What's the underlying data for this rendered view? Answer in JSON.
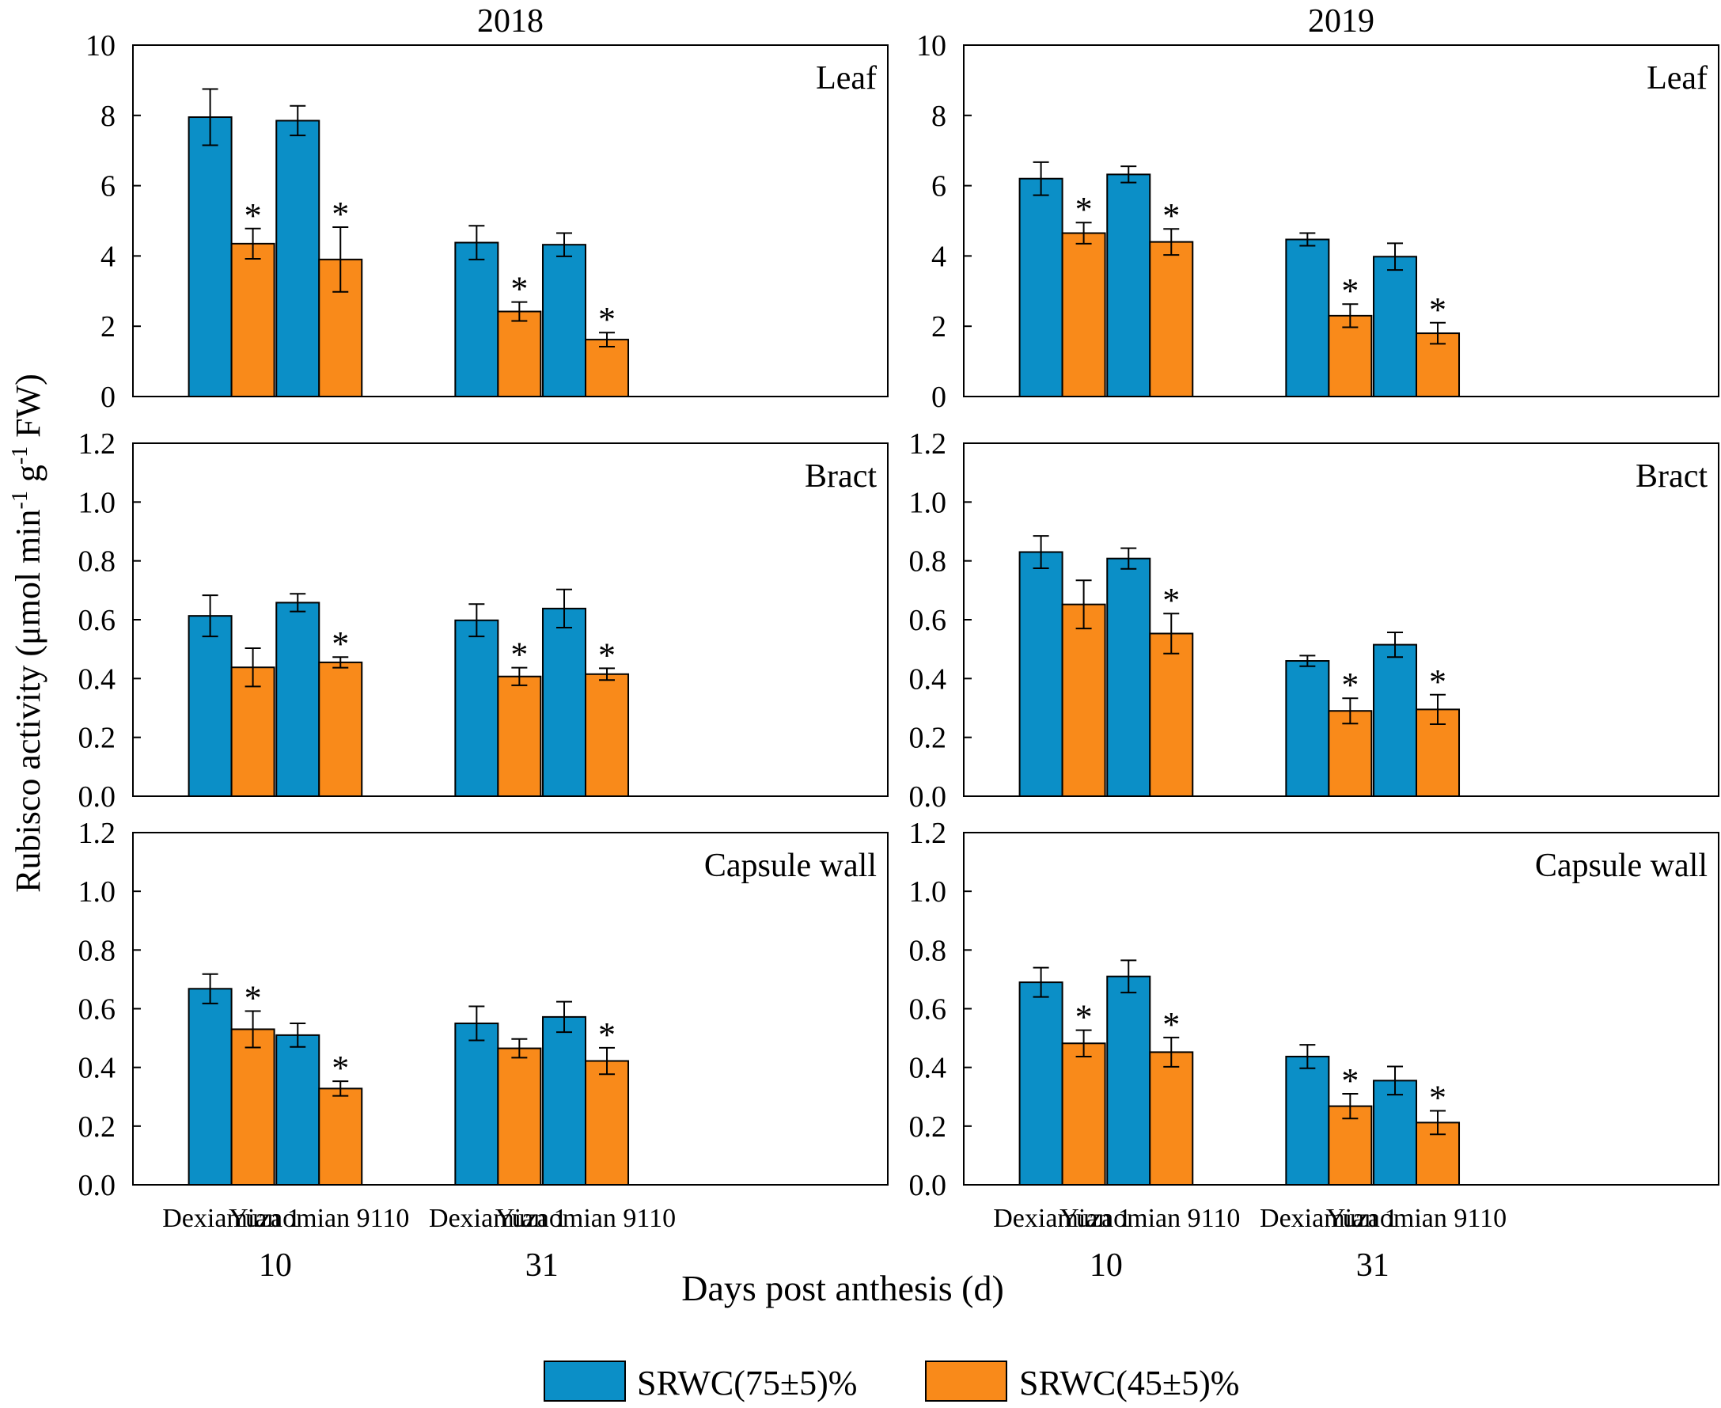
{
  "figure": {
    "ylabel_main": "Rubisco activity (μmol min",
    "ylabel_sup1": "-1",
    "ylabel_mid": " g",
    "ylabel_sup2": "-1",
    "ylabel_end": " FW)",
    "xlabel": "Days post anthesis (d)",
    "legend": [
      {
        "label": "SRWC(75±5)%",
        "color": "#0b8fc7"
      },
      {
        "label": "SRWC(45±5)%",
        "color": "#f98a1a"
      }
    ],
    "colors": {
      "series1": "#0b8fc7",
      "series2": "#f98a1a",
      "axis": "#000000"
    }
  },
  "chart_data": [
    {
      "type": "bar",
      "year": "2018",
      "organ": "Leaf",
      "title": "2018",
      "label": "Leaf",
      "ylim": [
        0,
        10
      ],
      "yticks": [
        "0",
        "2",
        "4",
        "6",
        "8",
        "10"
      ],
      "groups": [
        "10",
        "31"
      ],
      "categories": [
        "Dexiamian 1",
        "Yuzaomian 9110",
        "Dexiamian 1",
        "Yuzaomian 9110"
      ],
      "series": [
        {
          "name": "SRWC(75±5)%",
          "values": [
            7.95,
            7.85,
            4.38,
            4.32
          ],
          "errors": [
            0.8,
            0.42,
            0.48,
            0.33
          ],
          "sig": [
            false,
            false,
            false,
            false
          ]
        },
        {
          "name": "SRWC(45±5)%",
          "values": [
            4.35,
            3.9,
            2.42,
            1.62
          ],
          "errors": [
            0.43,
            0.92,
            0.27,
            0.2
          ],
          "sig": [
            true,
            true,
            true,
            true
          ]
        }
      ]
    },
    {
      "type": "bar",
      "year": "2019",
      "organ": "Leaf",
      "title": "2019",
      "label": "Leaf",
      "ylim": [
        0,
        10
      ],
      "yticks": [
        "0",
        "2",
        "4",
        "6",
        "8",
        "10"
      ],
      "groups": [
        "10",
        "31"
      ],
      "categories": [
        "Dexiamian 1",
        "Yuzaomian 9110",
        "Dexiamian 1",
        "Yuzaomian 9110"
      ],
      "series": [
        {
          "name": "SRWC(75±5)%",
          "values": [
            6.2,
            6.32,
            4.47,
            3.98
          ],
          "errors": [
            0.47,
            0.23,
            0.18,
            0.38
          ],
          "sig": [
            false,
            false,
            false,
            false
          ]
        },
        {
          "name": "SRWC(45±5)%",
          "values": [
            4.65,
            4.4,
            2.3,
            1.8
          ],
          "errors": [
            0.3,
            0.37,
            0.33,
            0.3
          ],
          "sig": [
            true,
            true,
            true,
            true
          ]
        }
      ]
    },
    {
      "type": "bar",
      "year": "2018",
      "organ": "Bract",
      "title": "",
      "label": "Bract",
      "ylim": [
        0,
        1.2
      ],
      "yticks": [
        "0.0",
        "0.2",
        "0.4",
        "0.6",
        "0.8",
        "1.0",
        "1.2"
      ],
      "groups": [
        "10",
        "31"
      ],
      "categories": [
        "Dexiamian 1",
        "Yuzaomian 9110",
        "Dexiamian 1",
        "Yuzaomian 9110"
      ],
      "series": [
        {
          "name": "SRWC(75±5)%",
          "values": [
            0.613,
            0.658,
            0.598,
            0.638
          ],
          "errors": [
            0.07,
            0.03,
            0.055,
            0.065
          ],
          "sig": [
            false,
            false,
            false,
            false
          ]
        },
        {
          "name": "SRWC(45±5)%",
          "values": [
            0.438,
            0.455,
            0.407,
            0.415
          ],
          "errors": [
            0.065,
            0.018,
            0.03,
            0.02
          ],
          "sig": [
            false,
            true,
            true,
            true
          ]
        }
      ]
    },
    {
      "type": "bar",
      "year": "2019",
      "organ": "Bract",
      "title": "",
      "label": "Bract",
      "ylim": [
        0,
        1.2
      ],
      "yticks": [
        "0.0",
        "0.2",
        "0.4",
        "0.6",
        "0.8",
        "1.0",
        "1.2"
      ],
      "groups": [
        "10",
        "31"
      ],
      "categories": [
        "Dexiamian 1",
        "Yuzaomian 9110",
        "Dexiamian 1",
        "Yuzaomian 9110"
      ],
      "series": [
        {
          "name": "SRWC(75±5)%",
          "values": [
            0.83,
            0.808,
            0.46,
            0.515
          ],
          "errors": [
            0.055,
            0.035,
            0.018,
            0.042
          ],
          "sig": [
            false,
            false,
            false,
            false
          ]
        },
        {
          "name": "SRWC(45±5)%",
          "values": [
            0.652,
            0.553,
            0.29,
            0.295
          ],
          "errors": [
            0.082,
            0.068,
            0.043,
            0.05
          ],
          "sig": [
            false,
            true,
            true,
            true
          ]
        }
      ]
    },
    {
      "type": "bar",
      "year": "2018",
      "organ": "Capsule wall",
      "title": "",
      "label": "Capsule wall",
      "ylim": [
        0,
        1.2
      ],
      "yticks": [
        "0.0",
        "0.2",
        "0.4",
        "0.6",
        "0.8",
        "1.0",
        "1.2"
      ],
      "groups": [
        "10",
        "31"
      ],
      "categories": [
        "Dexiamian 1",
        "Yuzaomian 9110",
        "Dexiamian 1",
        "Yuzaomian 9110"
      ],
      "series": [
        {
          "name": "SRWC(75±5)%",
          "values": [
            0.668,
            0.51,
            0.55,
            0.572
          ],
          "errors": [
            0.05,
            0.04,
            0.058,
            0.052
          ],
          "sig": [
            false,
            false,
            false,
            false
          ]
        },
        {
          "name": "SRWC(45±5)%",
          "values": [
            0.53,
            0.328,
            0.465,
            0.422
          ],
          "errors": [
            0.062,
            0.025,
            0.032,
            0.045
          ],
          "sig": [
            true,
            true,
            false,
            true
          ]
        }
      ]
    },
    {
      "type": "bar",
      "year": "2019",
      "organ": "Capsule wall",
      "title": "",
      "label": "Capsule wall",
      "ylim": [
        0,
        1.2
      ],
      "yticks": [
        "0.0",
        "0.2",
        "0.4",
        "0.6",
        "0.8",
        "1.0",
        "1.2"
      ],
      "groups": [
        "10",
        "31"
      ],
      "categories": [
        "Dexiamian 1",
        "Yuzaomian 9110",
        "Dexiamian 1",
        "Yuzaomian 9110"
      ],
      "series": [
        {
          "name": "SRWC(75±5)%",
          "values": [
            0.69,
            0.71,
            0.437,
            0.355
          ],
          "errors": [
            0.05,
            0.055,
            0.04,
            0.048
          ],
          "sig": [
            false,
            false,
            false,
            false
          ]
        },
        {
          "name": "SRWC(45±5)%",
          "values": [
            0.482,
            0.452,
            0.268,
            0.212
          ],
          "errors": [
            0.045,
            0.05,
            0.042,
            0.04
          ],
          "sig": [
            true,
            true,
            true,
            true
          ]
        }
      ]
    }
  ]
}
